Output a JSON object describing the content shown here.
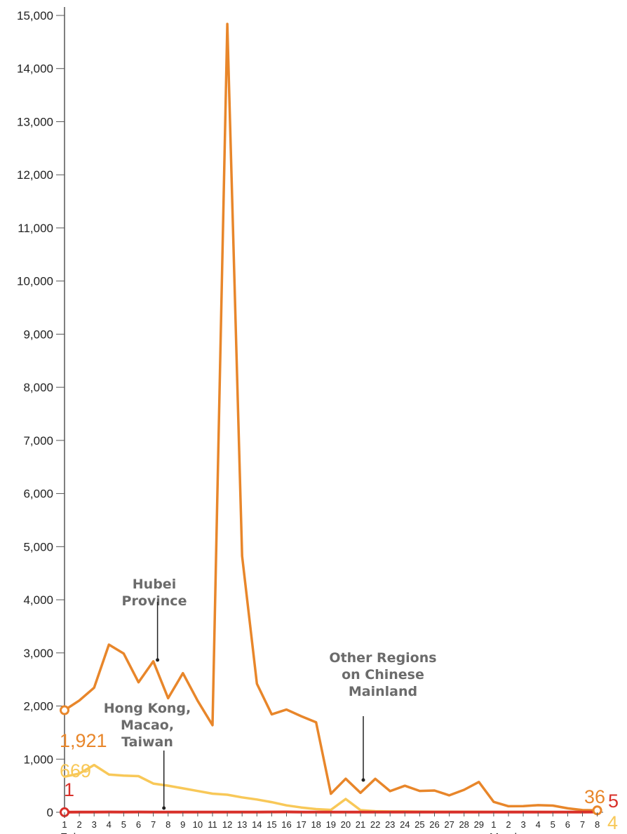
{
  "chart_data": {
    "type": "line",
    "title": "",
    "xlabel": "",
    "ylabel": "",
    "ylim": [
      0,
      15000
    ],
    "y_ticks": [
      0,
      1000,
      2000,
      3000,
      4000,
      5000,
      6000,
      7000,
      8000,
      9000,
      10000,
      11000,
      12000,
      13000,
      14000,
      15000
    ],
    "y_tick_labels": [
      "0",
      "1,000",
      "2,000",
      "3,000",
      "4,000",
      "5,000",
      "6,000",
      "7,000",
      "8,000",
      "9,000",
      "10,000",
      "11,000",
      "12,000",
      "13,000",
      "14,000",
      "15,000"
    ],
    "categories": [
      "1",
      "2",
      "3",
      "4",
      "5",
      "6",
      "7",
      "8",
      "9",
      "10",
      "11",
      "12",
      "13",
      "14",
      "15",
      "16",
      "17",
      "18",
      "19",
      "20",
      "21",
      "22",
      "23",
      "24",
      "25",
      "26",
      "27",
      "28",
      "29",
      "1",
      "2",
      "3",
      "4",
      "5",
      "6",
      "7",
      "8"
    ],
    "month_labels": [
      {
        "label": "February",
        "index": 0
      },
      {
        "label": "March",
        "index": 29
      }
    ],
    "grid": false,
    "legend": "none",
    "series": [
      {
        "name": "Hubei Province",
        "color": "#e8862a",
        "values": [
          1921,
          2103,
          2345,
          3156,
          2987,
          2447,
          2841,
          2147,
          2618,
          2097,
          1638,
          14840,
          4823,
          2420,
          1843,
          1933,
          1807,
          1693,
          349,
          631,
          366,
          630,
          398,
          499,
          401,
          409,
          318,
          423,
          570,
          196,
          114,
          115,
          134,
          126,
          74,
          41,
          36
        ],
        "start_label": "1,921",
        "end_label": "36",
        "annotation": [
          "Hubei",
          "Province"
        ]
      },
      {
        "name": "Hong Kong, Macao, Taiwan",
        "color": "#d8302a",
        "values": [
          1,
          3,
          2,
          5,
          3,
          5,
          3,
          4,
          3,
          4,
          3,
          2,
          4,
          3,
          5,
          6,
          4,
          3,
          2,
          3,
          2,
          2,
          3,
          2,
          3,
          2,
          2,
          3,
          2,
          3,
          2,
          2,
          3,
          2,
          3,
          4,
          5
        ],
        "start_label": "1",
        "end_label": "5",
        "annotation": [
          "Hong Kong,",
          "Macao,",
          "Taiwan"
        ]
      },
      {
        "name": "Other Regions on Chinese Mainland",
        "color": "#f8c858",
        "values": [
          669,
          729,
          890,
          710,
          690,
          680,
          540,
          500,
          450,
          400,
          350,
          330,
          280,
          240,
          190,
          130,
          90,
          60,
          45,
          250,
          40,
          20,
          15,
          15,
          12,
          10,
          10,
          8,
          8,
          7,
          7,
          6,
          6,
          5,
          5,
          4,
          4
        ],
        "start_label": "669",
        "end_label": "4",
        "annotation": [
          "Other Regions",
          "on Chinese",
          "Mainland"
        ]
      }
    ]
  }
}
